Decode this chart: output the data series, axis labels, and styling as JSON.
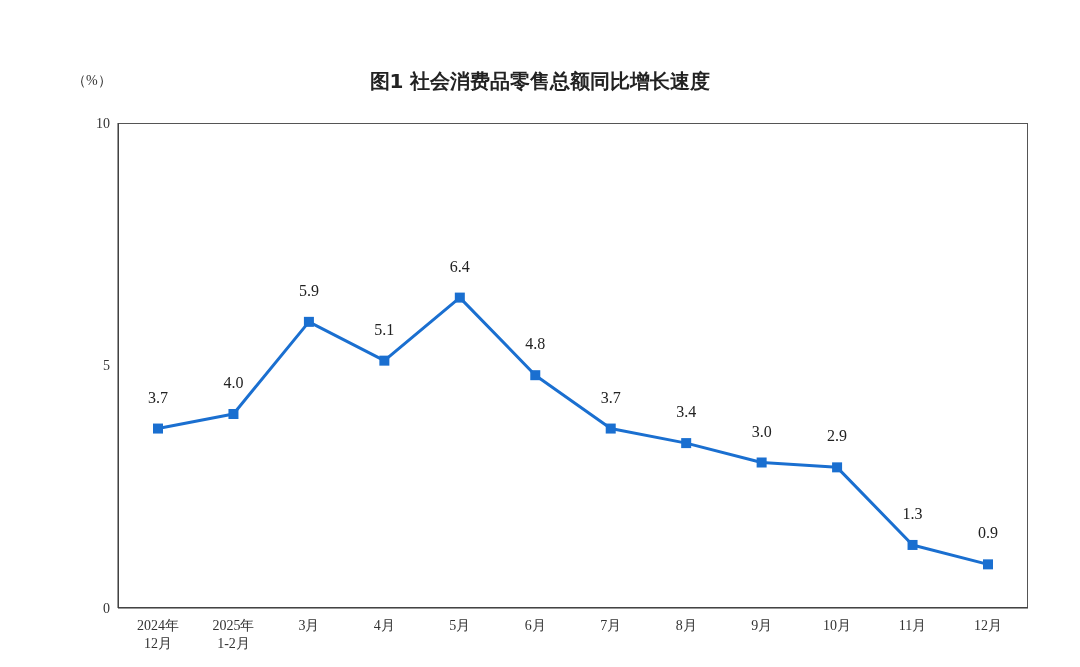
{
  "chart_data": {
    "type": "line",
    "title": "图1  社会消费品零售总额同比增长速度",
    "ylabel": "（%）",
    "categories": [
      "2024年\n12月",
      "2025年\n1-2月",
      "3月",
      "4月",
      "5月",
      "6月",
      "7月",
      "8月",
      "9月",
      "10月",
      "11月",
      "12月"
    ],
    "series": [
      {
        "color": "#1a6fd0",
        "values": [
          3.7,
          4.0,
          5.9,
          5.1,
          6.4,
          4.8,
          3.7,
          3.4,
          3.0,
          2.9,
          1.3,
          0.9
        ],
        "value_labels": [
          "3.7",
          "4.0",
          "5.9",
          "5.1",
          "6.4",
          "4.8",
          "3.7",
          "3.4",
          "3.0",
          "2.9",
          "1.3",
          "0.9"
        ]
      }
    ],
    "ylim": [
      0,
      10
    ],
    "yticks": [
      0,
      5,
      10
    ],
    "marker": "square",
    "line_style": "solid"
  }
}
